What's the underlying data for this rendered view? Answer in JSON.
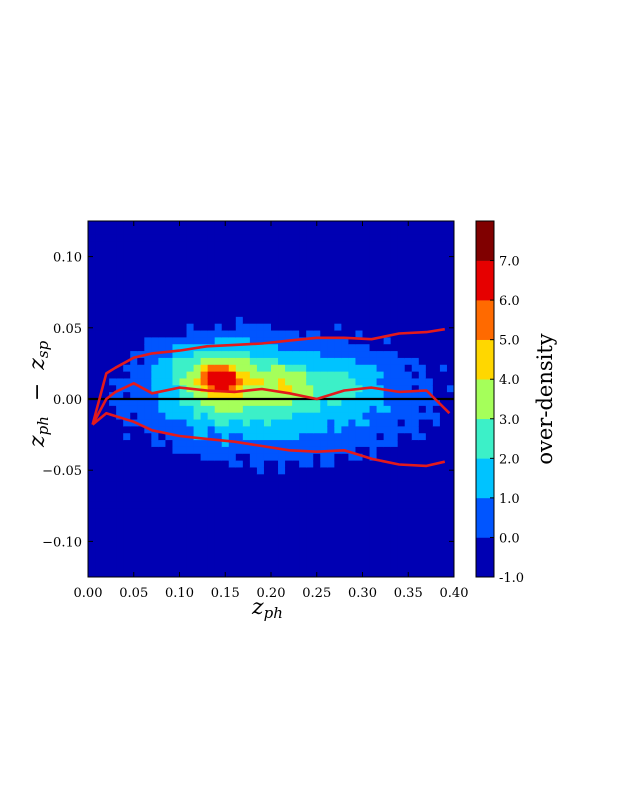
{
  "chart_data": {
    "type": "heatmap",
    "subtype": "filled-contour",
    "xlabel": "z_ph",
    "ylabel": "z_ph − z_sp",
    "xlim": [
      0.0,
      0.4
    ],
    "ylim": [
      -0.125,
      0.125
    ],
    "x_ticks": [
      0.0,
      0.05,
      0.1,
      0.15,
      0.2,
      0.25,
      0.3,
      0.35,
      0.4
    ],
    "x_tick_labels": [
      "0.00",
      "0.05",
      "0.10",
      "0.15",
      "0.20",
      "0.25",
      "0.30",
      "0.35",
      "0.40"
    ],
    "y_ticks": [
      0.1,
      0.05,
      0.0,
      -0.05,
      -0.1
    ],
    "y_tick_labels": [
      "0.10",
      "0.05",
      "0.00",
      "−0.05",
      "−0.10"
    ],
    "colorbar": {
      "label": "over-density",
      "range": [
        -1.0,
        8.0
      ],
      "ticks": [
        -1.0,
        0.0,
        1.0,
        2.0,
        3.0,
        4.0,
        5.0,
        6.0,
        7.0
      ],
      "tick_labels": [
        "-1.0",
        "0.0",
        "1.0",
        "2.0",
        "3.0",
        "4.0",
        "5.0",
        "6.0",
        "7.0"
      ],
      "levels": [
        -1,
        0,
        1,
        2,
        3,
        4,
        5,
        6,
        7,
        8
      ],
      "colors": [
        "#0000b3",
        "#0055ff",
        "#00c3ff",
        "#3cf0c8",
        "#a5ff5a",
        "#ffd700",
        "#ff6a00",
        "#e60000",
        "#800000"
      ]
    },
    "density_components": [
      {
        "x0": 0.21,
        "y0": 0.0,
        "sx": 0.12,
        "sy": 0.032,
        "amp": 2.7
      },
      {
        "x0": 0.15,
        "y0": 0.012,
        "sx": 0.05,
        "sy": 0.02,
        "amp": 2.4
      },
      {
        "x0": 0.145,
        "y0": 0.013,
        "sx": 0.016,
        "sy": 0.008,
        "amp": 3.3
      },
      {
        "x0": 0.22,
        "y0": 0.01,
        "sx": 0.02,
        "sy": 0.01,
        "amp": 1.4
      },
      {
        "x0": 0.28,
        "y0": 0.012,
        "sx": 0.025,
        "sy": 0.012,
        "amp": 1.2
      },
      {
        "x0": 0.12,
        "y0": 0.025,
        "sx": 0.03,
        "sy": 0.01,
        "amp": 0.8
      }
    ],
    "series": [
      {
        "color": "#e31a1c",
        "x": [
          0.005,
          0.02,
          0.03,
          0.05,
          0.07,
          0.1,
          0.13,
          0.16,
          0.19,
          0.22,
          0.25,
          0.28,
          0.31,
          0.34,
          0.37,
          0.39
        ],
        "y": [
          -0.018,
          0.018,
          0.022,
          0.029,
          0.032,
          0.034,
          0.037,
          0.038,
          0.039,
          0.041,
          0.043,
          0.043,
          0.042,
          0.046,
          0.047,
          0.049
        ]
      },
      {
        "color": "#e31a1c",
        "x": [
          0.005,
          0.02,
          0.03,
          0.05,
          0.07,
          0.1,
          0.13,
          0.16,
          0.19,
          0.22,
          0.25,
          0.28,
          0.31,
          0.34,
          0.37,
          0.395
        ],
        "y": [
          -0.018,
          0.0,
          0.005,
          0.011,
          0.004,
          0.008,
          0.006,
          0.005,
          0.007,
          0.004,
          0.0,
          0.006,
          0.008,
          0.005,
          0.006,
          -0.01
        ]
      },
      {
        "color": "#e31a1c",
        "x": [
          0.005,
          0.02,
          0.03,
          0.05,
          0.07,
          0.1,
          0.13,
          0.16,
          0.19,
          0.22,
          0.25,
          0.28,
          0.31,
          0.34,
          0.37,
          0.39
        ],
        "y": [
          -0.018,
          -0.01,
          -0.012,
          -0.016,
          -0.022,
          -0.026,
          -0.028,
          -0.03,
          -0.033,
          -0.036,
          -0.037,
          -0.036,
          -0.042,
          -0.046,
          -0.047,
          -0.044
        ]
      }
    ],
    "reference_line": {
      "y": 0.0,
      "color": "#000000"
    }
  }
}
